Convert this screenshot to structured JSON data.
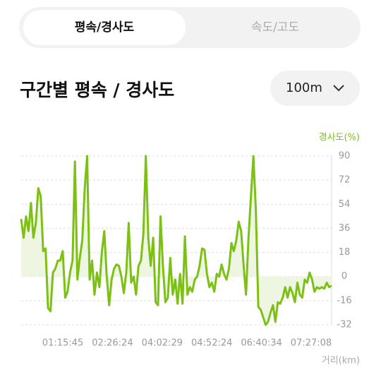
{
  "tabs": {
    "active": "평속/경사도",
    "inactive": "속도/고도"
  },
  "header": {
    "title": "구간별 평속 / 경사도",
    "dropdown": "100m"
  },
  "chart_data": {
    "type": "line",
    "y_label": "경사도(%)",
    "x_label": "거리(km)",
    "x_tick_labels": [
      "01:15:45",
      "02:26:24",
      "04:02:29",
      "04:52:24",
      "06:40:34",
      "07:27:08"
    ],
    "color": "#7cc015",
    "fill": "#eef6e2",
    "ylim": [
      -32,
      90
    ],
    "yticks": [
      90,
      72,
      54,
      36,
      18,
      0,
      -16,
      -32
    ],
    "grid": true,
    "values": [
      43,
      29,
      45,
      34,
      55,
      29,
      40,
      66,
      60,
      19,
      21,
      -21,
      -23,
      3,
      6,
      12,
      12,
      19,
      -14,
      -10,
      3,
      12,
      86,
      -2,
      14,
      27,
      66,
      90,
      -2,
      12,
      -12,
      3,
      -7,
      18,
      34,
      0,
      -19,
      -2,
      6,
      9,
      8,
      0,
      -11,
      3,
      40,
      -4,
      0,
      -12,
      8,
      12,
      32,
      90,
      29,
      8,
      29,
      -17,
      -19,
      45,
      8,
      -17,
      -14,
      14,
      -12,
      -2,
      -18,
      2,
      -18,
      30,
      -12,
      -7,
      -10,
      -2,
      0,
      8,
      21,
      20,
      2,
      -7,
      -4,
      -10,
      2,
      0,
      9,
      2,
      -2,
      6,
      25,
      19,
      27,
      41,
      34,
      8,
      -12,
      29,
      60,
      90,
      50,
      -20,
      -22,
      -27,
      -32,
      -30,
      -24,
      -19,
      -30,
      -17,
      -18,
      -14,
      -7,
      -14,
      -7,
      -11,
      -17,
      -4,
      -12,
      -14,
      -2,
      -4,
      3,
      -2,
      -10,
      -7,
      -8,
      -7,
      -8,
      -4,
      -7,
      -6
    ]
  }
}
